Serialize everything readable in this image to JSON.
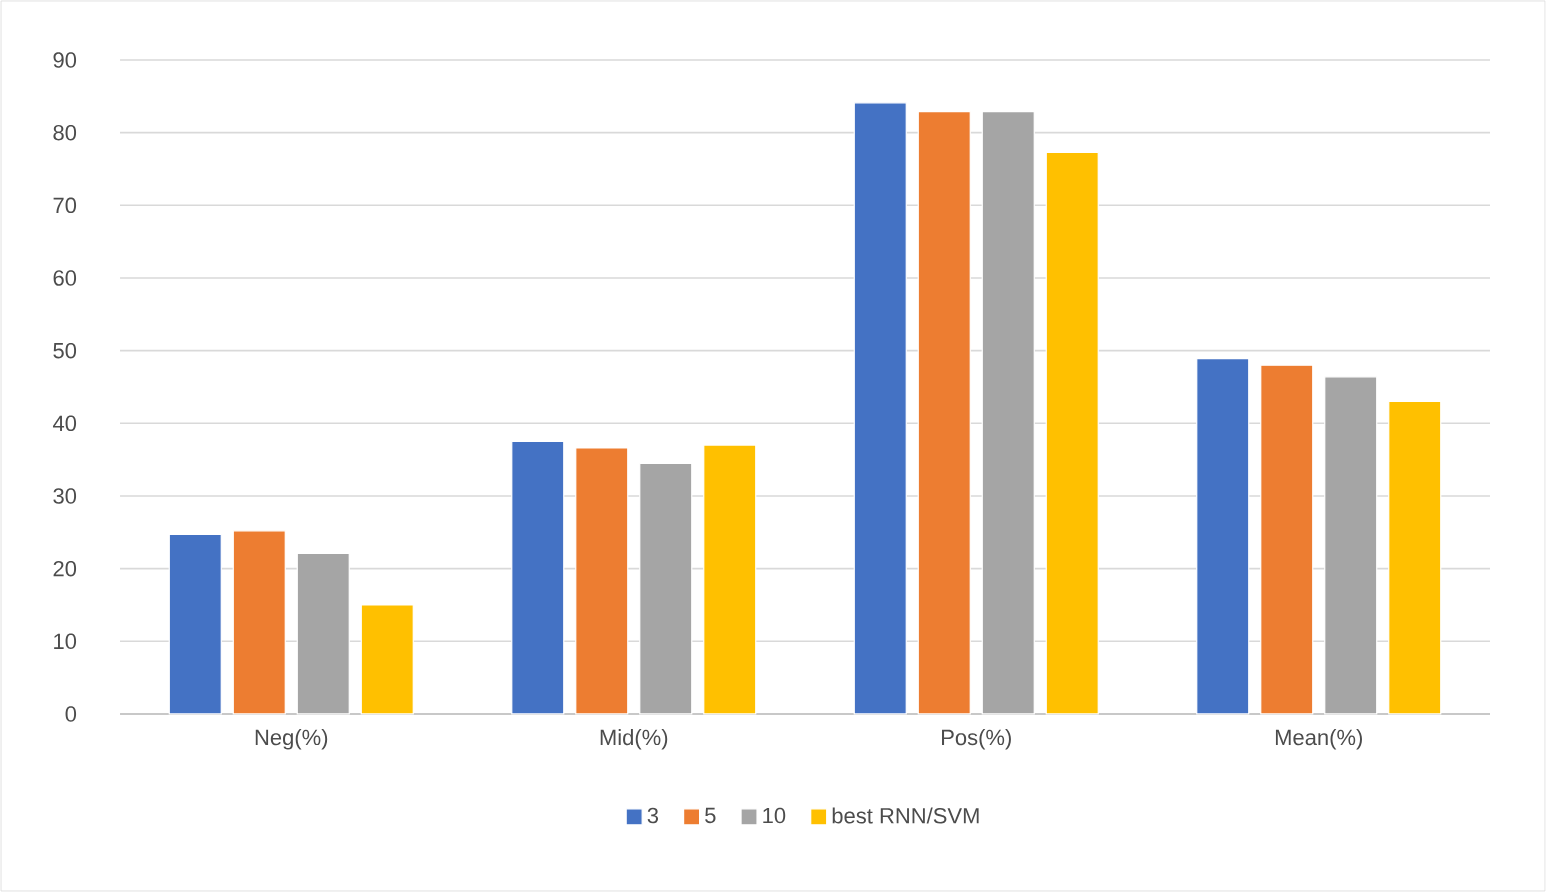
{
  "chart_data": {
    "type": "bar",
    "categories": [
      "Neg(%)",
      "Mid(%)",
      "Pos(%)",
      "Mean(%)"
    ],
    "series": [
      {
        "name": "3",
        "color": "#4472c4",
        "values": [
          24.7,
          37.5,
          84.1,
          48.9
        ]
      },
      {
        "name": "5",
        "color": "#ed7d31",
        "values": [
          25.2,
          36.6,
          82.9,
          48.0
        ]
      },
      {
        "name": "10",
        "color": "#a5a5a5",
        "values": [
          22.1,
          34.5,
          82.9,
          46.4
        ]
      },
      {
        "name": "best RNN/SVM",
        "color": "#ffc000",
        "values": [
          15.0,
          37.0,
          77.3,
          43.0
        ]
      }
    ],
    "ylim": [
      0,
      90
    ],
    "yticks": [
      0,
      10,
      20,
      30,
      40,
      50,
      60,
      70,
      80,
      90
    ],
    "grid": "y",
    "legend": "bottom"
  }
}
